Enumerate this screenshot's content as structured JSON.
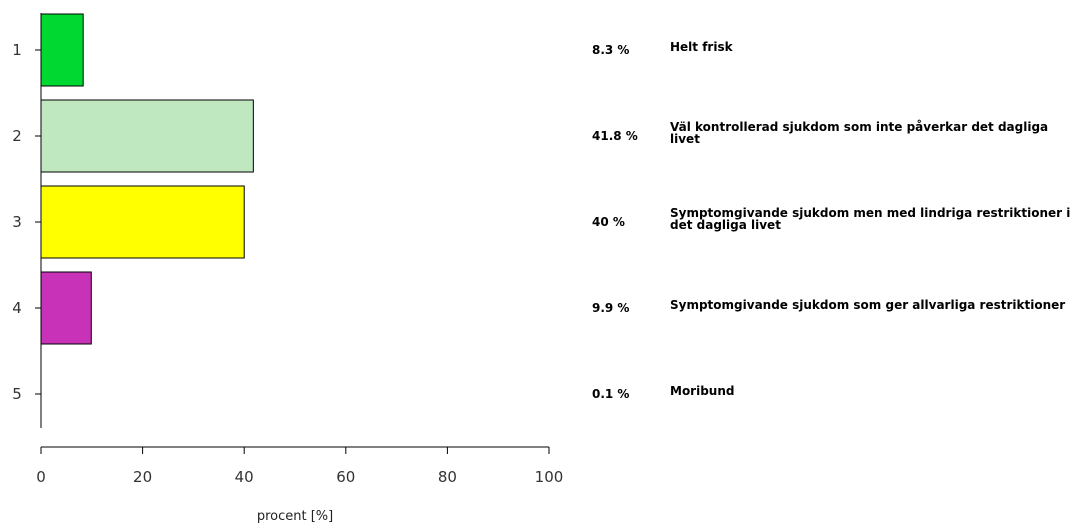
{
  "chart_data": {
    "type": "bar",
    "orientation": "horizontal",
    "categories": [
      "1",
      "2",
      "3",
      "4",
      "5"
    ],
    "values": [
      8.3,
      41.8,
      40,
      9.9,
      0.1
    ],
    "colors": [
      "#00d832",
      "#c0e8c0",
      "#ffff00",
      "#c832b8",
      "#ffffff"
    ],
    "xlabel": "procent [%]",
    "ylabel": "",
    "xlim": [
      0,
      100
    ],
    "xticks": [
      "0",
      "20",
      "40",
      "60",
      "80",
      "100"
    ],
    "grid": false,
    "value_labels": [
      "8.3 %",
      "41.8 %",
      "40 %",
      "9.9 %",
      "0.1 %"
    ],
    "descriptions": [
      "Helt frisk",
      "Väl kontrollerad sjukdom som inte påverkar det dagliga livet",
      "Symptomgivande sjukdom men med lindriga restriktioner i det dagliga livet",
      "Symptomgivande sjukdom som ger allvarliga restriktioner",
      "Moribund"
    ]
  }
}
